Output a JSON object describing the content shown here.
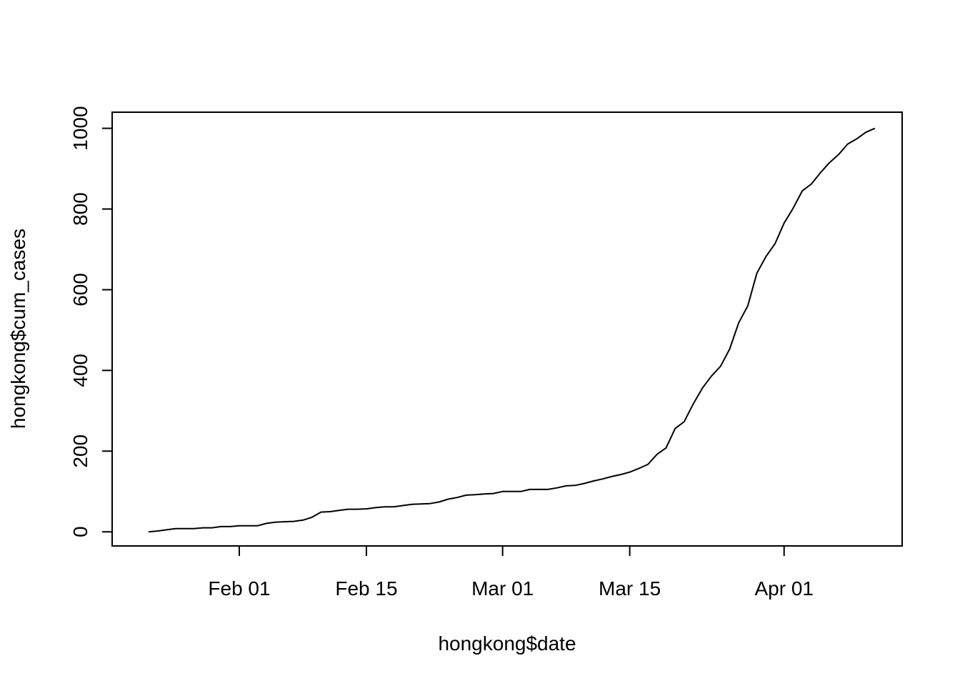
{
  "chart_data": {
    "type": "line",
    "title": "",
    "xlabel": "hongkong$date",
    "ylabel": "hongkong$cum_cases",
    "x_tick_labels": [
      {
        "date": "2020-02-01",
        "label": "Feb 01"
      },
      {
        "date": "2020-02-15",
        "label": "Feb 15"
      },
      {
        "date": "2020-03-01",
        "label": "Mar 01"
      },
      {
        "date": "2020-03-15",
        "label": "Mar 15"
      },
      {
        "date": "2020-04-01",
        "label": "Apr 01"
      }
    ],
    "y_ticks": [
      0,
      200,
      400,
      600,
      800,
      1000
    ],
    "xlim": [
      "2020-01-18",
      "2020-04-14"
    ],
    "ylim": [
      -35,
      1040
    ],
    "grid": false,
    "legend": "none",
    "series": [
      {
        "x": [
          "2020-01-22",
          "2020-01-23",
          "2020-01-24",
          "2020-01-25",
          "2020-01-26",
          "2020-01-27",
          "2020-01-28",
          "2020-01-29",
          "2020-01-30",
          "2020-01-31",
          "2020-02-01",
          "2020-02-02",
          "2020-02-03",
          "2020-02-04",
          "2020-02-05",
          "2020-02-06",
          "2020-02-07",
          "2020-02-08",
          "2020-02-09",
          "2020-02-10",
          "2020-02-11",
          "2020-02-12",
          "2020-02-13",
          "2020-02-14",
          "2020-02-15",
          "2020-02-16",
          "2020-02-17",
          "2020-02-18",
          "2020-02-19",
          "2020-02-20",
          "2020-02-21",
          "2020-02-22",
          "2020-02-23",
          "2020-02-24",
          "2020-02-25",
          "2020-02-26",
          "2020-02-27",
          "2020-02-28",
          "2020-02-29",
          "2020-03-01",
          "2020-03-02",
          "2020-03-03",
          "2020-03-04",
          "2020-03-05",
          "2020-03-06",
          "2020-03-07",
          "2020-03-08",
          "2020-03-09",
          "2020-03-10",
          "2020-03-11",
          "2020-03-12",
          "2020-03-13",
          "2020-03-14",
          "2020-03-15",
          "2020-03-16",
          "2020-03-17",
          "2020-03-18",
          "2020-03-19",
          "2020-03-20",
          "2020-03-21",
          "2020-03-22",
          "2020-03-23",
          "2020-03-24",
          "2020-03-25",
          "2020-03-26",
          "2020-03-27",
          "2020-03-28",
          "2020-03-29",
          "2020-03-30",
          "2020-03-31",
          "2020-04-01",
          "2020-04-02",
          "2020-04-03",
          "2020-04-04",
          "2020-04-05",
          "2020-04-06",
          "2020-04-07",
          "2020-04-08",
          "2020-04-09",
          "2020-04-10",
          "2020-04-11"
        ],
        "y": [
          0,
          2,
          5,
          8,
          8,
          8,
          10,
          10,
          13,
          13,
          15,
          15,
          15,
          21,
          24,
          25,
          26,
          29,
          36,
          49,
          50,
          53,
          56,
          56,
          57,
          60,
          62,
          62,
          65,
          68,
          69,
          70,
          74,
          81,
          85,
          91,
          92,
          94,
          95,
          100,
          100,
          100,
          105,
          105,
          105,
          109,
          114,
          115,
          120,
          126,
          131,
          137,
          142,
          148,
          157,
          167,
          192,
          208,
          256,
          273,
          317,
          356,
          386,
          410,
          453,
          518,
          560,
          641,
          682,
          714,
          765,
          802,
          845,
          862,
          890,
          915,
          935,
          961,
          974,
          990,
          1000
        ]
      }
    ]
  }
}
